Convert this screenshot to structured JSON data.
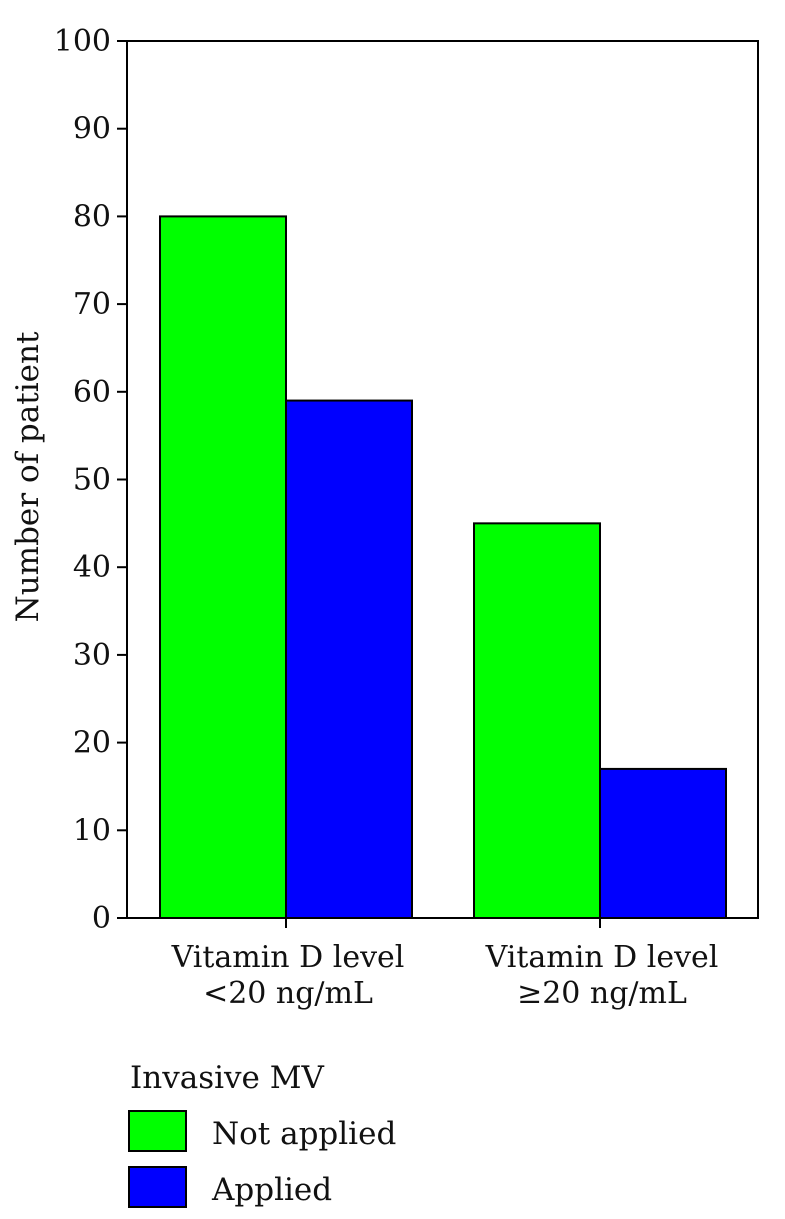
{
  "chart_data": {
    "type": "bar",
    "categories": [
      [
        "Vitamin D level",
        "<20 ng/mL"
      ],
      [
        "Vitamin D level",
        "≥20 ng/mL"
      ]
    ],
    "series": [
      {
        "name": "Not applied",
        "values": [
          80,
          45
        ],
        "color": "#00ff00"
      },
      {
        "name": "Applied",
        "values": [
          59,
          17
        ],
        "color": "#0000ff"
      }
    ],
    "ylabel": "Number of patient",
    "xlabel": "",
    "title": "",
    "ylim": [
      0,
      100
    ],
    "yticks": [
      0,
      10,
      20,
      30,
      40,
      50,
      60,
      70,
      80,
      90,
      100
    ],
    "grid": false,
    "legend": {
      "title": "Invasive MV",
      "placement": "bottom-left"
    }
  }
}
